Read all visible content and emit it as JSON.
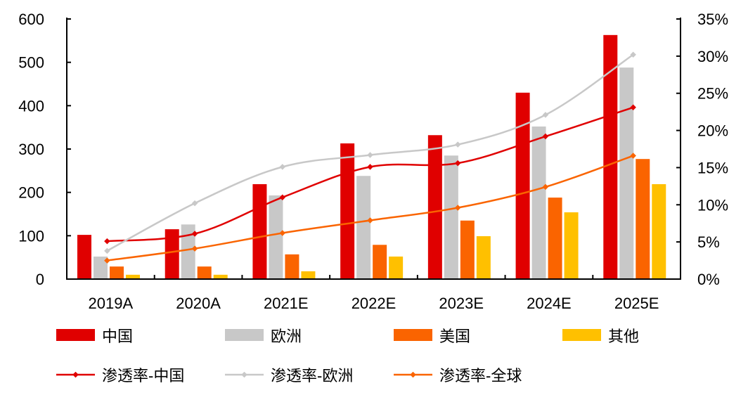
{
  "chart_data": {
    "type": "bar",
    "categories": [
      "2019A",
      "2020A",
      "2021E",
      "2022E",
      "2023E",
      "2024E",
      "2025E"
    ],
    "left_axis": {
      "ylim": [
        0,
        600
      ],
      "ticks": [
        "0",
        "100",
        "200",
        "300",
        "400",
        "500",
        "600"
      ]
    },
    "right_axis": {
      "ylim": [
        0,
        35
      ],
      "ticks": [
        "0%",
        "5%",
        "10%",
        "15%",
        "20%",
        "25%",
        "30%",
        "35%"
      ]
    },
    "bar_series": [
      {
        "name": "中国",
        "color": "#E00000",
        "values": [
          102,
          115,
          219,
          313,
          332,
          430,
          563
        ]
      },
      {
        "name": "欧洲",
        "color": "#C8C8C8",
        "values": [
          52,
          126,
          193,
          238,
          285,
          352,
          488
        ]
      },
      {
        "name": "美国",
        "color": "#FA6400",
        "values": [
          29,
          29,
          57,
          79,
          135,
          188,
          277
        ]
      },
      {
        "name": "其他",
        "color": "#FFC000",
        "values": [
          10,
          10,
          18,
          52,
          99,
          154,
          219
        ]
      }
    ],
    "line_series": [
      {
        "name": "渗透率-中国",
        "color": "#E00000",
        "values": [
          5.1,
          6.1,
          11.0,
          15.1,
          15.6,
          19.2,
          23.1
        ]
      },
      {
        "name": "渗透率-欧洲",
        "color": "#C8C8C8",
        "values": [
          3.8,
          10.2,
          15.1,
          16.7,
          18.1,
          22.1,
          30.2
        ]
      },
      {
        "name": "渗透率-全球",
        "color": "#FA6400",
        "values": [
          2.5,
          4.1,
          6.2,
          7.9,
          9.6,
          12.4,
          16.6
        ]
      }
    ],
    "legend_placement": "bottom",
    "grid": false
  }
}
